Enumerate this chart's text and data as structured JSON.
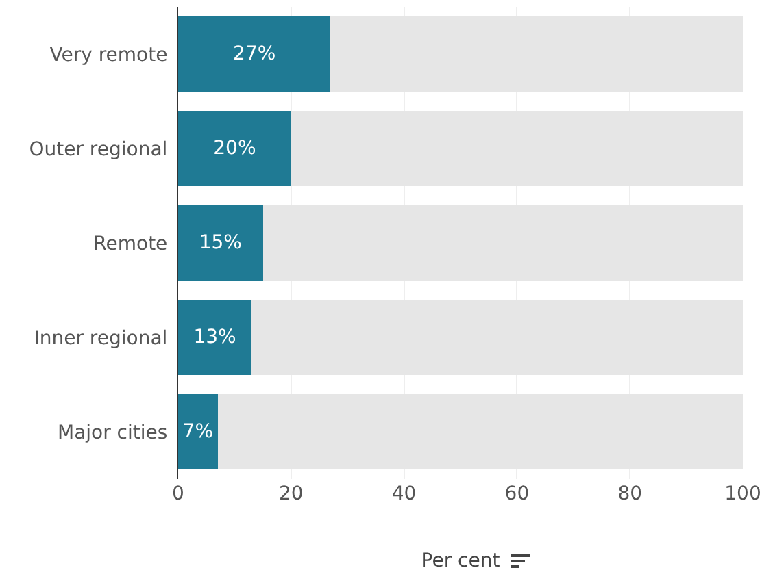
{
  "chart_data": {
    "type": "bar",
    "orientation": "horizontal",
    "stacked": true,
    "xlabel": "Per cent",
    "categories": [
      "Very remote",
      "Outer regional",
      "Remote",
      "Inner regional",
      "Major cities"
    ],
    "series": [
      {
        "color": "#1f7a94",
        "values": [
          27,
          20,
          15,
          13,
          7
        ],
        "value_labels": [
          "27%",
          "20%",
          "15%",
          "13%",
          "7%"
        ]
      },
      {
        "color": "#e6e6e6",
        "values": [
          73,
          80,
          85,
          87,
          93
        ]
      }
    ],
    "xlim": [
      0,
      100
    ],
    "xticks": [
      0,
      20,
      40,
      60,
      80,
      100
    ],
    "grid": "x"
  }
}
